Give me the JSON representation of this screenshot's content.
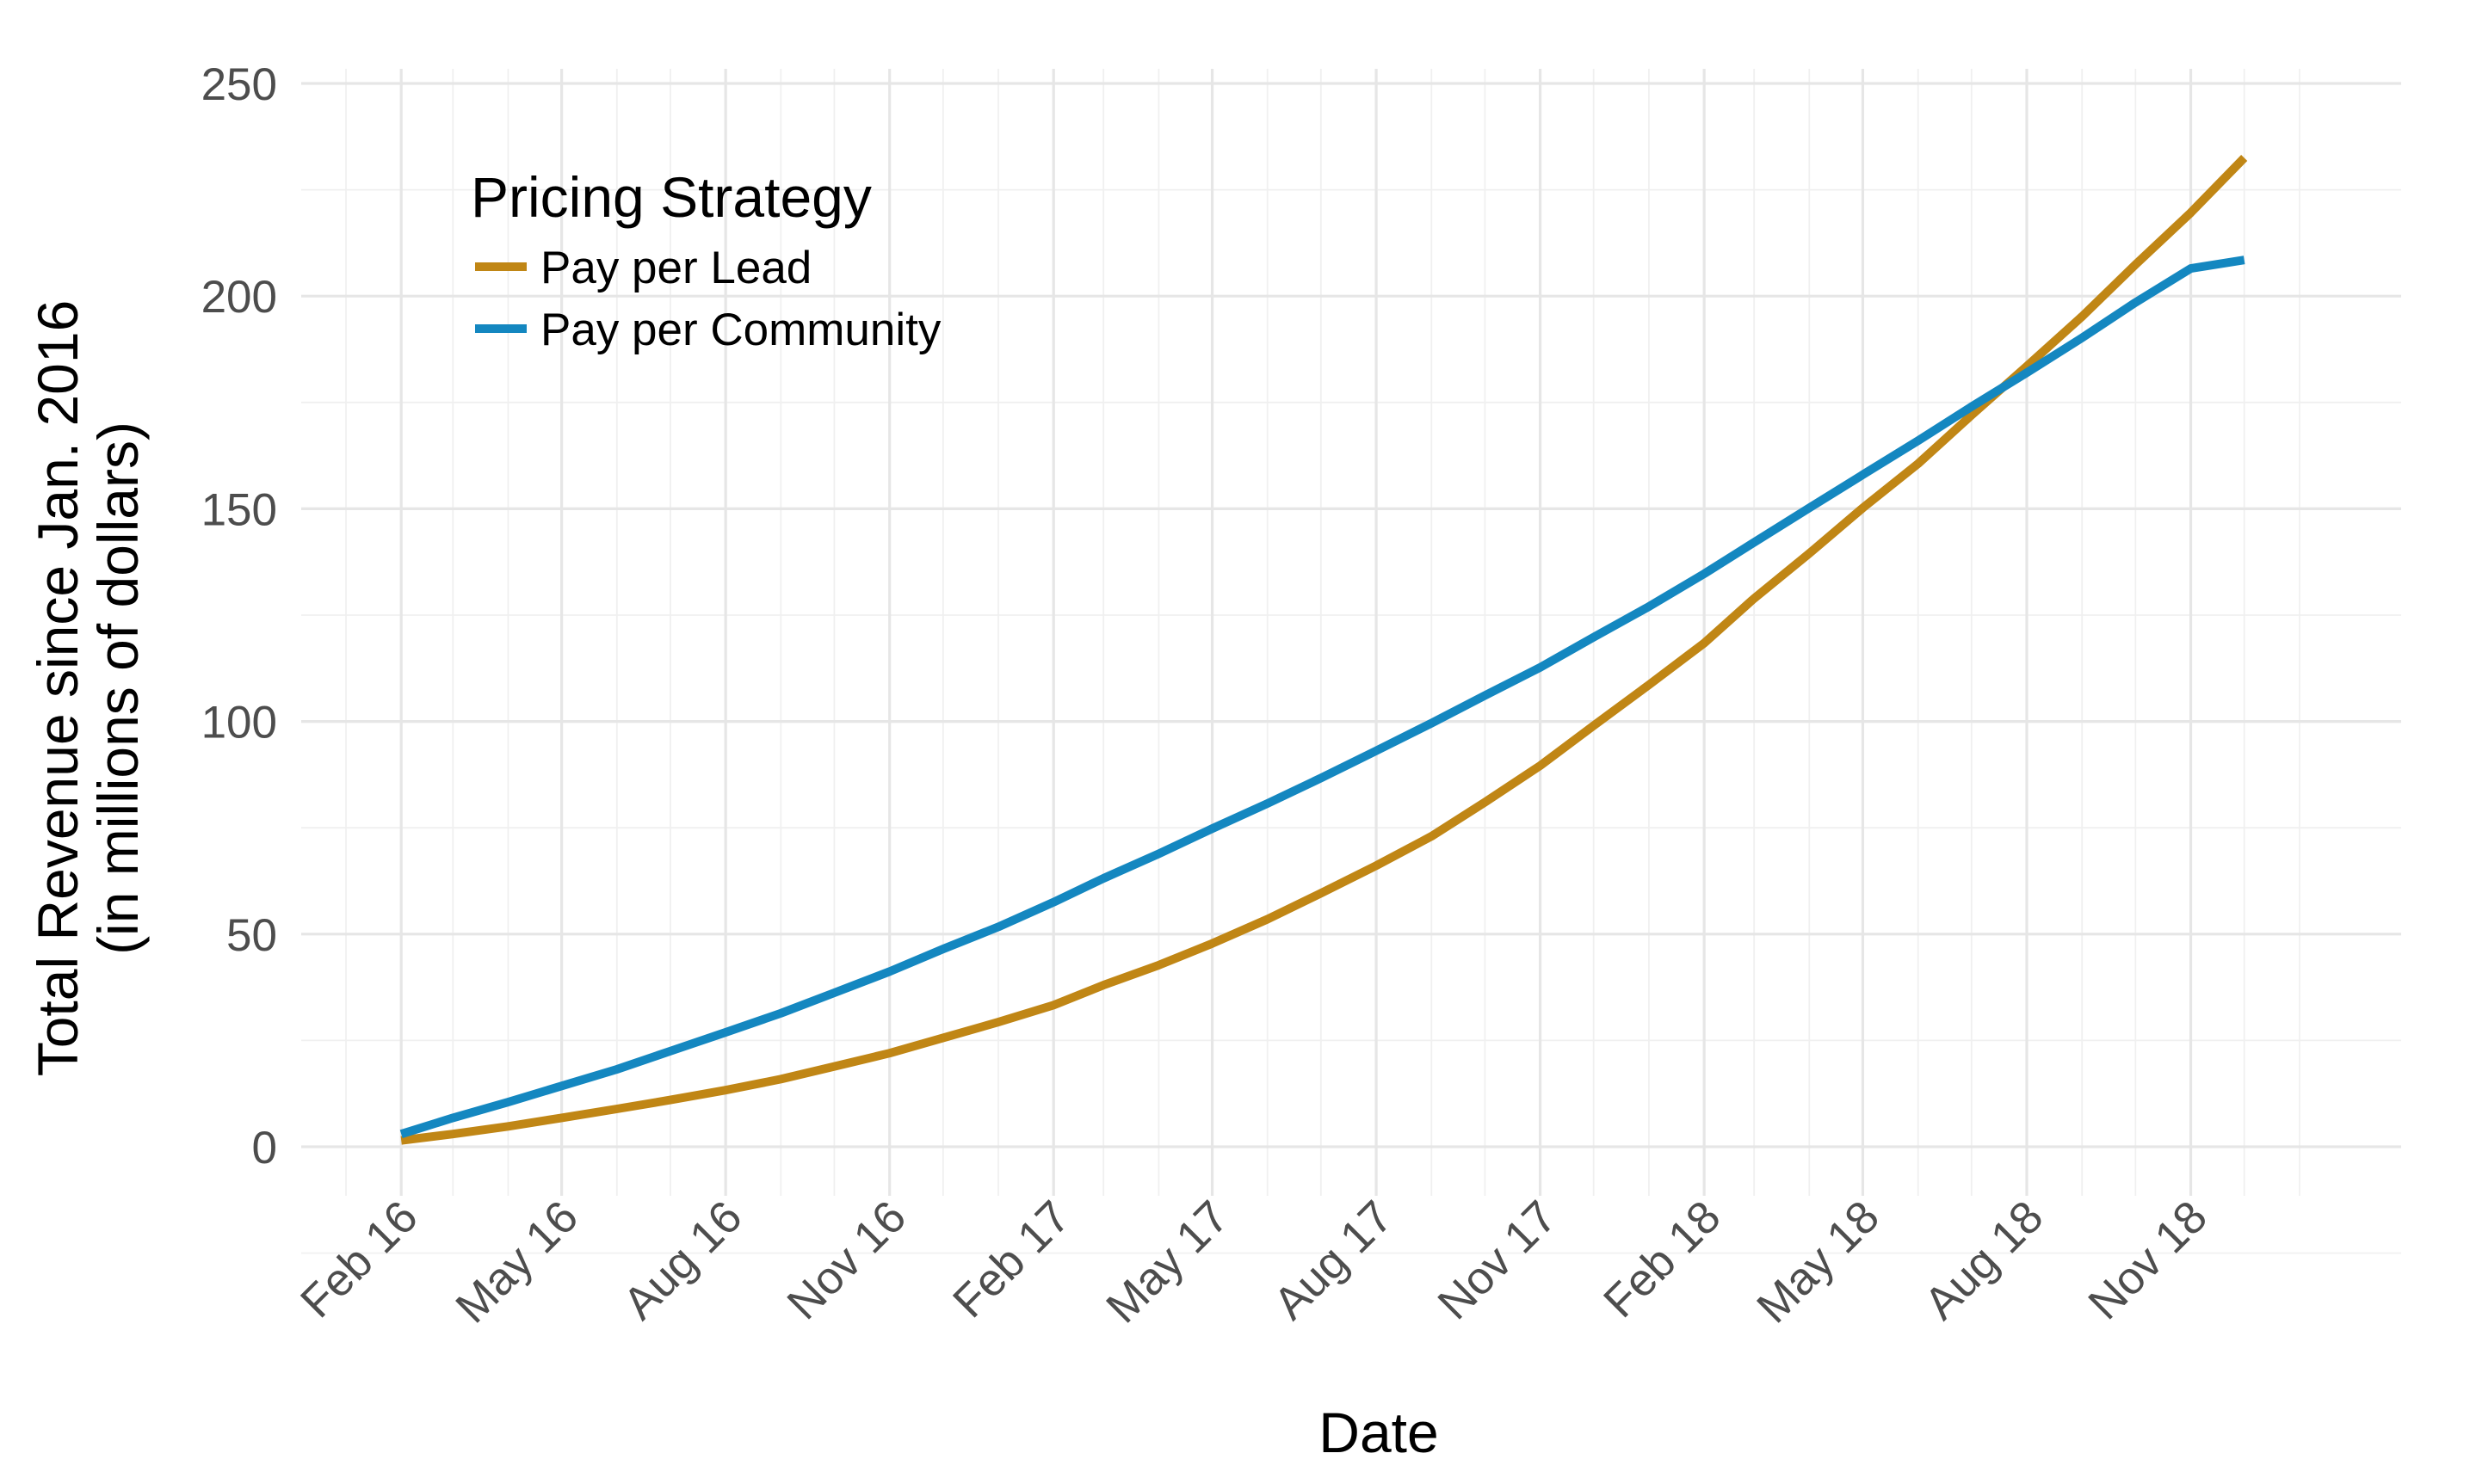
{
  "chart_data": {
    "type": "line",
    "xlabel": "Date",
    "ylabel_line1": "Total Revenue since Jan. 2016",
    "ylabel_line2": "(in millions of dollars)",
    "ylim": [
      0,
      250
    ],
    "yticks": [
      0,
      50,
      100,
      150,
      200,
      250
    ],
    "x_range": [
      "2016-01-01",
      "2019-02-28"
    ],
    "xticks": [
      {
        "date": "2016-02-01",
        "label": "Feb 16"
      },
      {
        "date": "2016-05-01",
        "label": "May 16"
      },
      {
        "date": "2016-08-01",
        "label": "Aug 16"
      },
      {
        "date": "2016-11-01",
        "label": "Nov 16"
      },
      {
        "date": "2017-02-01",
        "label": "Feb 17"
      },
      {
        "date": "2017-05-01",
        "label": "May 17"
      },
      {
        "date": "2017-08-01",
        "label": "Aug 17"
      },
      {
        "date": "2017-11-01",
        "label": "Nov 17"
      },
      {
        "date": "2018-02-01",
        "label": "Feb 18"
      },
      {
        "date": "2018-05-01",
        "label": "May 18"
      },
      {
        "date": "2018-08-01",
        "label": "Aug 18"
      },
      {
        "date": "2018-11-01",
        "label": "Nov 18"
      }
    ],
    "grid": true,
    "legend": {
      "title": "Pricing Strategy",
      "placement": "top-left"
    },
    "x": [
      "2016-02-01",
      "2016-03-01",
      "2016-04-01",
      "2016-05-01",
      "2016-06-01",
      "2016-07-01",
      "2016-08-01",
      "2016-09-01",
      "2016-10-01",
      "2016-11-01",
      "2016-12-01",
      "2017-01-01",
      "2017-02-01",
      "2017-03-01",
      "2017-04-01",
      "2017-05-01",
      "2017-06-01",
      "2017-07-01",
      "2017-08-01",
      "2017-09-01",
      "2017-10-01",
      "2017-11-01",
      "2017-12-01",
      "2018-01-01",
      "2018-02-01",
      "2018-03-01",
      "2018-04-01",
      "2018-05-01",
      "2018-06-01",
      "2018-07-01",
      "2018-08-01",
      "2018-09-01",
      "2018-10-01",
      "2018-11-01",
      "2018-12-01"
    ],
    "series": [
      {
        "name": "Pay per Lead",
        "color": "#C08615",
        "values": [
          1.5,
          3.0,
          4.8,
          6.8,
          8.9,
          11.0,
          13.3,
          15.9,
          18.9,
          22.0,
          25.6,
          29.3,
          33.3,
          38.0,
          42.7,
          47.8,
          53.5,
          59.6,
          66.1,
          73.0,
          81.0,
          89.6,
          99.0,
          108.6,
          118.4,
          128.9,
          139.5,
          150.2,
          160.6,
          172.0,
          183.5,
          195.2,
          207.4,
          219.6,
          232.5
        ]
      },
      {
        "name": "Pay per Community",
        "color": "#1487C0",
        "values": [
          3.0,
          6.8,
          10.5,
          14.3,
          18.2,
          22.5,
          26.9,
          31.4,
          36.2,
          41.2,
          46.5,
          51.7,
          57.5,
          63.1,
          68.9,
          74.8,
          80.7,
          86.7,
          93.1,
          99.6,
          106.1,
          112.7,
          119.8,
          127.0,
          134.7,
          142.1,
          150.2,
          158.0,
          166.0,
          174.0,
          182.0,
          190.2,
          198.5,
          206.5,
          208.5
        ]
      }
    ]
  }
}
